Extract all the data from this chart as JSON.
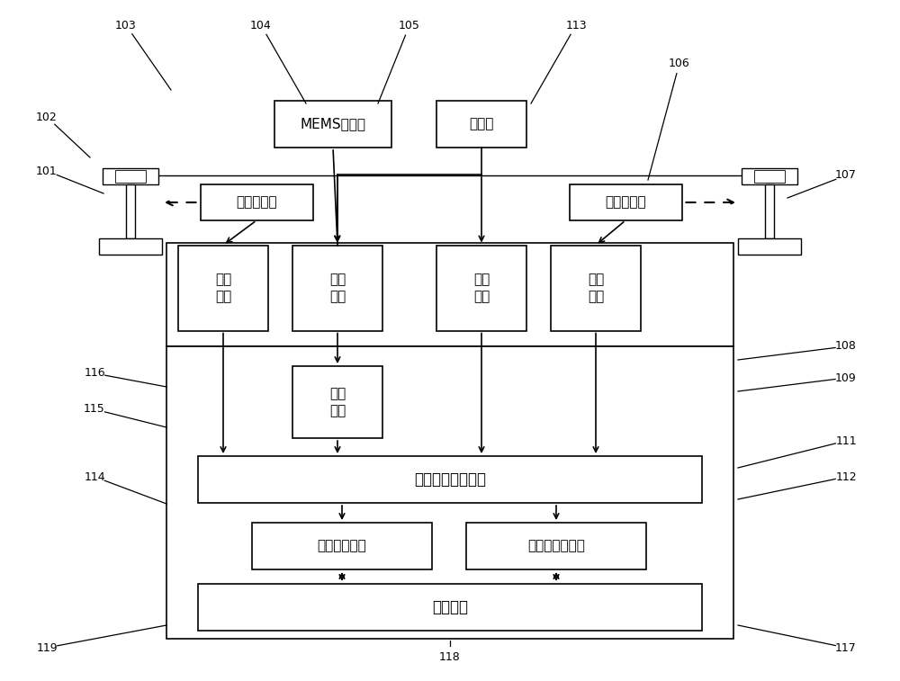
{
  "bg_color": "#ffffff",
  "box_color": "#ffffff",
  "box_edge": "#000000",
  "line_color": "#000000",
  "labels": {
    "mems": "MEMS陀螺仪",
    "odometer": "里程计",
    "disp_sensor_L": "位移传感器",
    "disp_sensor_R": "位移传感器",
    "sig_cond_L": "信号\n调理",
    "sig_acq_L": "信号\n采集",
    "sig_acq_R": "信号\n采集",
    "sig_cond_R": "信号\n调理",
    "sig_amp": "信号\n增强",
    "track_calc": "轨道几何状态计算",
    "meas_data": "测量数据管理",
    "job_pos": "作业定位与分析",
    "remote": "远程通讯"
  }
}
